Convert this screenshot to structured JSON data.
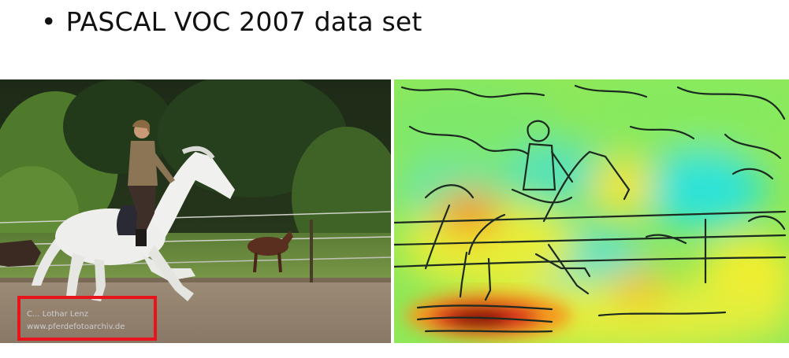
{
  "slide": {
    "bullet": "•",
    "title": "PASCAL VOC 2007 data set"
  },
  "photo": {
    "watermark_line1": "C... Lothar Lenz",
    "watermark_line2": "www.pferdefotoarchiv.de",
    "highlight_color": "#e8141b"
  },
  "heatmap": {
    "colormap": [
      "#2ee3d6",
      "#7fe86a",
      "#f7ef2a",
      "#f59a1a",
      "#c8101b",
      "#7a0006"
    ]
  }
}
